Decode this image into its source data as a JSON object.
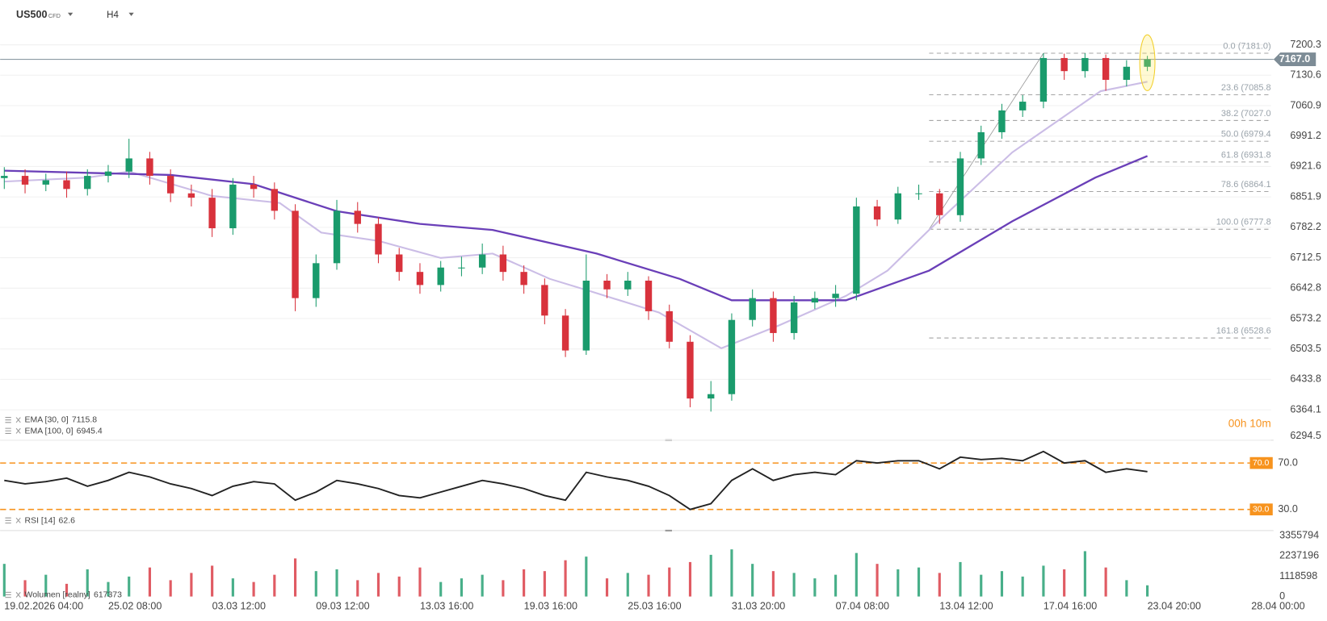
{
  "header": {
    "symbol": "US500",
    "instrument_type": "CFD",
    "timeframe": "H4",
    "countdown": "00h 10m"
  },
  "chart_data": [
    {
      "type": "candlestick",
      "x": [
        0,
        2,
        4,
        6,
        8,
        10,
        12,
        14,
        16,
        18,
        20,
        22,
        24,
        26,
        28,
        30,
        32,
        34,
        36,
        38,
        40,
        42,
        44,
        46,
        48,
        50,
        52,
        54,
        56,
        58,
        60,
        62,
        64,
        66,
        68,
        70,
        72,
        74,
        76,
        78,
        80,
        82,
        84,
        86,
        88,
        90,
        92,
        94,
        96,
        98,
        100,
        102,
        104,
        106,
        108,
        110
      ],
      "open": [
        6895,
        6900,
        6880,
        6890,
        6870,
        6900,
        6910,
        6940,
        6900,
        6860,
        6850,
        6780,
        6880,
        6870,
        6820,
        6620,
        6700,
        6820,
        6790,
        6720,
        6680,
        6650,
        6690,
        6690,
        6720,
        6680,
        6650,
        6580,
        6500,
        6660,
        6640,
        6660,
        6590,
        6520,
        6390,
        6400,
        6570,
        6620,
        6540,
        6610,
        6620,
        6630,
        6830,
        6800,
        6860,
        6860,
        6810,
        6940,
        7000,
        7050,
        7070,
        7170,
        7140,
        7170,
        7120,
        7150
      ],
      "high": [
        6920,
        6915,
        6905,
        6910,
        6915,
        6925,
        6985,
        6955,
        6915,
        6880,
        6870,
        6895,
        6900,
        6885,
        6835,
        6720,
        6845,
        6840,
        6805,
        6735,
        6700,
        6705,
        6715,
        6745,
        6740,
        6695,
        6665,
        6595,
        6720,
        6675,
        6680,
        6670,
        6605,
        6535,
        6430,
        6585,
        6640,
        6635,
        6625,
        6635,
        6650,
        6850,
        6845,
        6875,
        6880,
        6870,
        6955,
        7015,
        7065,
        7085,
        7181,
        7180,
        7181,
        7178,
        7165,
        7175
      ],
      "low": [
        6870,
        6860,
        6865,
        6850,
        6855,
        6885,
        6895,
        6880,
        6840,
        6830,
        6760,
        6765,
        6850,
        6800,
        6590,
        6600,
        6685,
        6770,
        6700,
        6660,
        6630,
        6635,
        6670,
        6675,
        6660,
        6630,
        6560,
        6485,
        6490,
        6620,
        6625,
        6570,
        6505,
        6370,
        6360,
        6385,
        6555,
        6520,
        6525,
        6595,
        6600,
        6615,
        6785,
        6790,
        6845,
        6790,
        6795,
        6925,
        6985,
        7035,
        7055,
        7120,
        7125,
        7095,
        7105,
        7140
      ],
      "close": [
        6900,
        6880,
        6890,
        6870,
        6900,
        6910,
        6940,
        6900,
        6860,
        6850,
        6780,
        6880,
        6870,
        6820,
        6620,
        6700,
        6820,
        6790,
        6720,
        6680,
        6650,
        6690,
        6690,
        6720,
        6680,
        6650,
        6580,
        6500,
        6660,
        6640,
        6660,
        6590,
        6520,
        6390,
        6400,
        6570,
        6620,
        6540,
        6610,
        6620,
        6630,
        6830,
        6800,
        6860,
        6860,
        6810,
        6940,
        7000,
        7050,
        7070,
        7170,
        7140,
        7170,
        7120,
        7150,
        7167
      ],
      "up_color": "#1a9b6c",
      "down_color": "#d8323c",
      "series": [
        {
          "name": "EMA [30, 0]",
          "color": "#cbbde6",
          "x": [
            0,
            8,
            12,
            20,
            26.5,
            30.5,
            36,
            42,
            47,
            52.5,
            56.5,
            63,
            69,
            74.5,
            81,
            85,
            89,
            97,
            105.5,
            110
          ],
          "values": [
            6887,
            6896,
            6910,
            6854,
            6838,
            6770,
            6751,
            6712,
            6722,
            6664,
            6635,
            6587,
            6505,
            6557,
            6625,
            6683,
            6776,
            6954,
            7094,
            7115.8
          ]
        },
        {
          "name": "EMA [100, 0]",
          "color": "#6a3fb8",
          "x": [
            0,
            16,
            24,
            32,
            40,
            47,
            57,
            65,
            70,
            81,
            89,
            97,
            105,
            110
          ],
          "values": [
            6912,
            6902,
            6881,
            6819,
            6790,
            6776,
            6722,
            6664,
            6615,
            6615,
            6683,
            6796,
            6896,
            6945.4
          ]
        }
      ],
      "fib_x": [
        89,
        100
      ],
      "fib_levels": [
        {
          "value": 7181.0,
          "label": "0.0 (7181.0)"
        },
        {
          "value": 7085.8,
          "label": "23.6 (7085.8"
        },
        {
          "value": 7027.0,
          "label": "38.2 (7027.0"
        },
        {
          "value": 6979.4,
          "label": "50.0 (6979.4"
        },
        {
          "value": 6931.8,
          "label": "61.8 (6931.8"
        },
        {
          "value": 6864.1,
          "label": "78.6 (6864.1"
        },
        {
          "value": 6777.8,
          "label": "100.0 (6777.8"
        },
        {
          "value": 6528.6,
          "label": "161.8 (6528.6"
        }
      ],
      "last_price": {
        "value": 7167.0,
        "label": "7167.0"
      },
      "xlim": [
        -0.4,
        121.9
      ],
      "ylim": [
        6294.5,
        7225.5
      ],
      "yticks": [
        7200.3,
        7130.6,
        7060.9,
        6991.2,
        6921.6,
        6851.9,
        6782.2,
        6712.5,
        6642.8,
        6573.2,
        6503.5,
        6433.8,
        6364.1,
        6294.5
      ],
      "grid": true
    },
    {
      "type": "line",
      "name": "RSI [14]",
      "color": "#222222",
      "x": [
        0,
        2,
        4,
        6,
        8,
        10,
        12,
        14,
        16,
        18,
        20,
        22,
        24,
        26,
        28,
        30,
        32,
        34,
        36,
        38,
        40,
        42,
        44,
        46,
        48,
        50,
        52,
        54,
        56,
        58,
        60,
        62,
        64,
        66,
        68,
        70,
        72,
        74,
        76,
        78,
        80,
        82,
        84,
        86,
        88,
        90,
        92,
        94,
        96,
        98,
        100,
        102,
        104,
        106,
        108,
        110
      ],
      "values": [
        55,
        52,
        54,
        57,
        50,
        55,
        62,
        58,
        52,
        48,
        42,
        50,
        54,
        52,
        38,
        45,
        55,
        52,
        48,
        42,
        40,
        45,
        50,
        55,
        52,
        48,
        42,
        38,
        62,
        58,
        55,
        50,
        42,
        30,
        35,
        55,
        65,
        55,
        60,
        62,
        60,
        72,
        70,
        72,
        72,
        65,
        75,
        73,
        74,
        72,
        80,
        70,
        72,
        62,
        65,
        62.6
      ],
      "xlim": [
        -0.4,
        121.9
      ],
      "ylim": [
        12.5,
        85.3
      ],
      "yticks": [
        {
          "value": 70,
          "label": "70.0"
        },
        {
          "value": 30,
          "label": "30.0"
        }
      ],
      "level_color": "#f7931e"
    },
    {
      "type": "bar",
      "name": "Wolumen [realny]",
      "x": [
        0,
        2,
        4,
        6,
        8,
        10,
        12,
        14,
        16,
        18,
        20,
        22,
        24,
        26,
        28,
        30,
        32,
        34,
        36,
        38,
        40,
        42,
        44,
        46,
        48,
        50,
        52,
        54,
        56,
        58,
        60,
        62,
        64,
        66,
        68,
        70,
        72,
        74,
        76,
        78,
        80,
        82,
        84,
        86,
        88,
        90,
        92,
        94,
        96,
        98,
        100,
        102,
        104,
        106,
        108,
        110
      ],
      "values": [
        1800000,
        900000,
        1200000,
        700000,
        1500000,
        800000,
        1100000,
        1600000,
        900000,
        1300000,
        1700000,
        1000000,
        800000,
        1200000,
        2100000,
        1400000,
        1500000,
        900000,
        1300000,
        1100000,
        1600000,
        800000,
        1000000,
        1200000,
        900000,
        1500000,
        1400000,
        2000000,
        2200000,
        1000000,
        1300000,
        1200000,
        1600000,
        1900000,
        2300000,
        2600000,
        1800000,
        1400000,
        1300000,
        1000000,
        1200000,
        2400000,
        1800000,
        1500000,
        1600000,
        1300000,
        1900000,
        1200000,
        1400000,
        1100000,
        1700000,
        1500000,
        2500000,
        1600000,
        900000,
        617373
      ],
      "xlim": [
        -0.4,
        121.9
      ],
      "ylim": [
        0,
        3355794
      ],
      "yticks": [
        3355794,
        2237196,
        1118598,
        0
      ],
      "xticks": [
        {
          "value": 0,
          "label": "19.02.2026 04:00"
        },
        {
          "value": 10,
          "label": "25.02 08:00"
        },
        {
          "value": 20,
          "label": "03.03 12:00"
        },
        {
          "value": 30,
          "label": "09.03 12:00"
        },
        {
          "value": 40,
          "label": "13.03 16:00"
        },
        {
          "value": 50,
          "label": "19.03 16:00"
        },
        {
          "value": 60,
          "label": "25.03 16:00"
        },
        {
          "value": 70,
          "label": "31.03 20:00"
        },
        {
          "value": 80,
          "label": "07.04 08:00"
        },
        {
          "value": 90,
          "label": "13.04 12:00"
        },
        {
          "value": 100,
          "label": "17.04 16:00"
        },
        {
          "value": 110,
          "label": "23.04 20:00"
        },
        {
          "value": 120,
          "label": "28.04 00:00"
        }
      ]
    }
  ]
}
